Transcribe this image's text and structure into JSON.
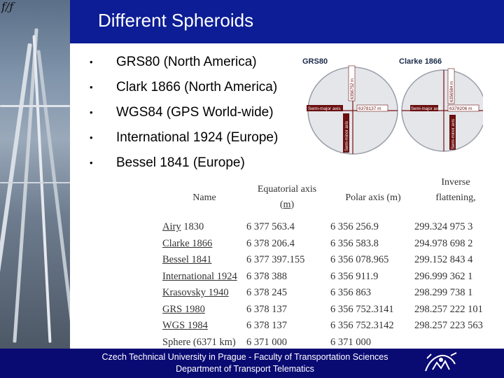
{
  "slide": {
    "title": "Different Spheroids",
    "corner_logo": "f/ƒ"
  },
  "bullets": [
    "GRS80 (North America)",
    "Clark 1866 (North America)",
    "WGS84 (GPS World-wide)",
    "International 1924 (Europe)",
    "Bessel 1841 (Europe)"
  ],
  "bullet_symbol": "•",
  "figure": {
    "left_label": "GRS80",
    "right_label": "Clarke 1866",
    "left_semi_major": "Semi-major axis",
    "left_semi_major_value": "6378137 m",
    "left_semi_minor": "Semi-minor axis",
    "left_semi_minor_value": "6356752 m",
    "right_semi_major": "Semi-major axis",
    "right_semi_major_value": "6378206 m",
    "right_semi_minor": "Semi-minor axis",
    "right_semi_minor_value": "6356584 m"
  },
  "table": {
    "headers": {
      "name": "Name",
      "equatorial_prefix": "Equatorial axis",
      "equatorial_unit": "m",
      "polar": "Polar axis (m)",
      "inverse": "Inverse flattening,"
    },
    "rows": [
      {
        "name_link": "Airy",
        "name_rest": " 1830",
        "equatorial": "6 377 563.4",
        "polar": "6 356 256.9",
        "inverse": "299.324 975 3"
      },
      {
        "name_link": "Clarke 1866",
        "name_rest": "",
        "equatorial": "6 378 206.4",
        "polar": "6 356 583.8",
        "inverse": "294.978 698 2"
      },
      {
        "name_link": "Bessel 1841",
        "name_rest": "",
        "equatorial": "6 377 397.155",
        "polar": "6 356 078.965",
        "inverse": "299.152 843 4"
      },
      {
        "name_link": "International 1924",
        "name_rest": "",
        "equatorial": "6 378 388",
        "polar": "6 356 911.9",
        "inverse": "296.999 362 1"
      },
      {
        "name_link": "Krasovsky 1940",
        "name_rest": "",
        "equatorial": "6 378 245",
        "polar": "6 356 863",
        "inverse": "298.299 738 1"
      },
      {
        "name_link": "GRS 1980",
        "name_rest": "",
        "equatorial": "6 378 137",
        "polar": "6 356 752.3141",
        "inverse": "298.257 222 101"
      },
      {
        "name_link": "WGS 1984",
        "name_rest": "",
        "equatorial": "6 378 137",
        "polar": "6 356 752.3142",
        "inverse": "298.257 223 563"
      },
      {
        "name_link": "",
        "name_rest": "Sphere (6371 km)",
        "equatorial": "6 371 000",
        "polar": "6 371 000",
        "inverse": ""
      }
    ]
  },
  "footer": {
    "line1": "Czech Technical University in Prague - Faculty of Transportation Sciences",
    "line2": "Department of Transport Telematics"
  },
  "colors": {
    "header_band": "#0d1d95",
    "footer_band": "#0a0a73"
  }
}
